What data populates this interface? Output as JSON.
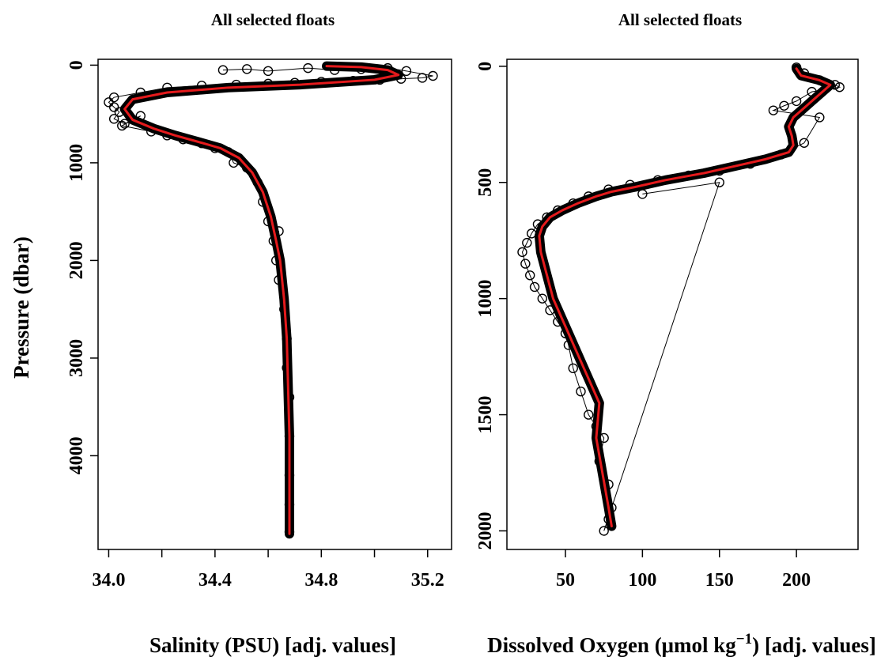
{
  "figure": {
    "ylabel": "Pressure (dbar)"
  },
  "chart_data": [
    {
      "type": "line",
      "title": "All selected floats",
      "xlabel": "Salinity (PSU)  [adj. values]",
      "ylabel": "Pressure (dbar)",
      "xlim": [
        33.96,
        35.29
      ],
      "ylim": [
        4960,
        -60
      ],
      "x_ticks": [
        34.0,
        34.2,
        34.4,
        34.6,
        34.8,
        35.0,
        35.2
      ],
      "x_tick_labels": [
        "34.0",
        "",
        "34.4",
        "",
        "34.8",
        "",
        "35.2"
      ],
      "y_ticks": [
        0,
        1000,
        2000,
        3000,
        4000
      ],
      "y_tick_labels": [
        "0",
        "1000",
        "2000",
        "3000",
        "4000"
      ],
      "colors": {
        "mean": "#e41a1c",
        "points": "#000000"
      },
      "series": [
        {
          "name": "",
          "kind": "mean profile",
          "x": [
            34.82,
            34.95,
            35.05,
            35.09,
            35.0,
            34.72,
            34.45,
            34.22,
            34.09,
            34.06,
            34.09,
            34.17,
            34.25,
            34.33,
            34.42,
            34.49,
            34.54,
            34.58,
            34.61,
            34.63,
            34.645,
            34.66,
            34.67,
            34.675,
            34.68,
            34.68,
            34.68
          ],
          "y": [
            10,
            20,
            50,
            100,
            150,
            200,
            230,
            280,
            350,
            450,
            560,
            650,
            720,
            780,
            850,
            950,
            1100,
            1300,
            1550,
            1800,
            2000,
            2400,
            2800,
            3300,
            3800,
            4300,
            4800
          ]
        },
        {
          "name": "",
          "kind": "observations",
          "x": [
            34.43,
            34.52,
            34.6,
            34.75,
            34.85,
            34.95,
            35.05,
            35.12,
            35.22,
            35.18,
            35.1,
            35.02,
            34.92,
            34.8,
            34.7,
            34.6,
            34.48,
            34.35,
            34.22,
            34.12,
            34.02,
            34.0,
            34.02,
            34.04,
            34.02,
            34.06,
            34.12,
            34.05,
            34.16,
            34.22,
            34.28,
            34.35,
            34.4,
            34.45,
            34.47,
            34.52,
            34.56,
            34.58,
            34.6,
            34.62,
            34.63,
            34.64,
            34.64,
            34.66,
            34.67,
            34.67,
            34.68,
            34.68,
            34.68,
            34.68,
            34.68
          ],
          "y": [
            50,
            40,
            60,
            30,
            50,
            40,
            30,
            60,
            110,
            130,
            140,
            150,
            160,
            170,
            180,
            190,
            200,
            210,
            230,
            280,
            330,
            380,
            430,
            480,
            550,
            600,
            520,
            620,
            680,
            720,
            760,
            800,
            850,
            890,
            1000,
            1050,
            1200,
            1400,
            1600,
            1800,
            2000,
            1700,
            2200,
            2500,
            2800,
            3100,
            3400,
            3800,
            4200,
            4500,
            4780
          ]
        }
      ]
    },
    {
      "type": "line",
      "title": "All selected floats",
      "xlabel": "Dissolved Oxygen (μmol kg",
      "xlabel_sup": "−1",
      "xlabel_suffix": ")  [adj. values]",
      "ylabel": "",
      "xlim": [
        12,
        240
      ],
      "ylim": [
        2080,
        -30
      ],
      "x_ticks": [
        50,
        100,
        150,
        200
      ],
      "x_tick_labels": [
        "50",
        "100",
        "150",
        "200"
      ],
      "y_ticks": [
        0,
        500,
        1000,
        1500,
        2000
      ],
      "y_tick_labels": [
        "0",
        "500",
        "1000",
        "1500",
        "2000"
      ],
      "colors": {
        "mean": "#e41a1c",
        "points": "#000000"
      },
      "series": [
        {
          "name": "",
          "kind": "mean profile",
          "x": [
            200,
            203,
            215,
            222,
            210,
            198,
            195,
            197,
            198,
            195,
            180,
            160,
            140,
            115,
            95,
            80,
            70,
            58,
            48,
            40,
            35,
            33,
            34,
            38,
            42,
            52,
            62,
            72,
            70,
            74,
            78,
            80
          ],
          "y": [
            10,
            40,
            60,
            80,
            150,
            220,
            260,
            300,
            340,
            370,
            400,
            430,
            460,
            490,
            520,
            540,
            560,
            590,
            620,
            650,
            690,
            730,
            800,
            900,
            1000,
            1150,
            1300,
            1450,
            1600,
            1750,
            1900,
            1980
          ]
        },
        {
          "name": "",
          "kind": "observations",
          "x": [
            200,
            205,
            215,
            225,
            228,
            210,
            200,
            192,
            185,
            215,
            205,
            190,
            170,
            150,
            130,
            110,
            92,
            78,
            65,
            55,
            45,
            38,
            32,
            28,
            25,
            22,
            24,
            27,
            30,
            35,
            40,
            45,
            50,
            52,
            55,
            60,
            65,
            70,
            75,
            72,
            78,
            80,
            78,
            75,
            150,
            100
          ],
          "y": [
            5,
            30,
            60,
            80,
            90,
            110,
            150,
            170,
            190,
            220,
            330,
            380,
            420,
            450,
            470,
            490,
            510,
            530,
            560,
            590,
            620,
            650,
            680,
            720,
            760,
            800,
            850,
            900,
            950,
            1000,
            1050,
            1100,
            1150,
            1200,
            1300,
            1400,
            1500,
            1550,
            1600,
            1700,
            1800,
            1900,
            1950,
            2000,
            500,
            550
          ]
        }
      ]
    }
  ]
}
